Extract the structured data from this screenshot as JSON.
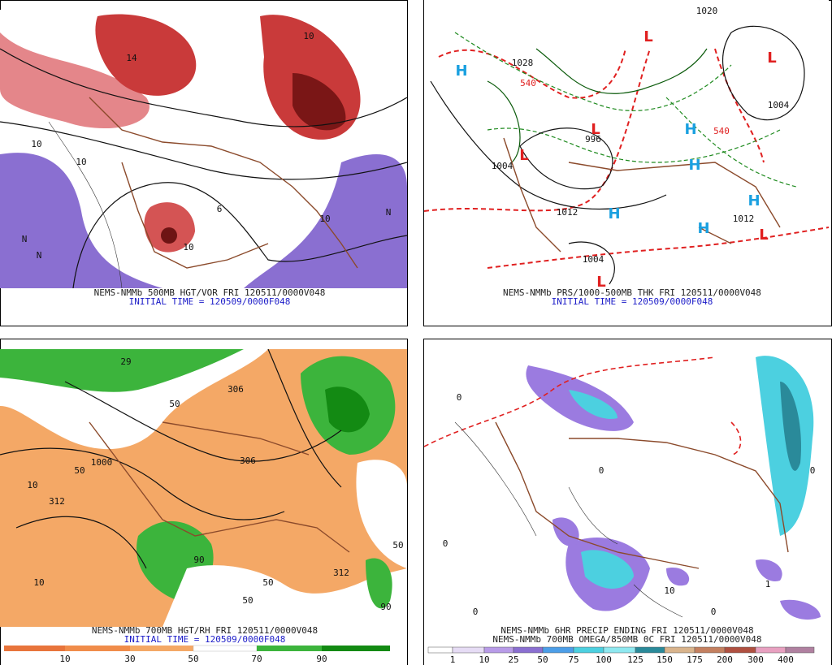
{
  "panels": [
    {
      "caption": "NEMS-NMMb 500MB HGT/VOR FRI 120511/0000V048",
      "initial": "INITIAL TIME = 120509/0000F048",
      "labels": [
        "10",
        "10",
        "10",
        "N",
        "N",
        "N",
        "10",
        "10",
        "6",
        "14"
      ]
    },
    {
      "caption": "NEMS-NMMb PRS/1000-500MB THK FRI 120511/0000V048",
      "initial": "INITIAL TIME = 120509/0000F048",
      "labels": [
        "H",
        "L",
        "L",
        "L",
        "L",
        "H",
        "H",
        "H",
        "H",
        "H",
        "L",
        "L",
        "1028",
        "540",
        "996",
        "1004",
        "1012",
        "1012",
        "1004",
        "1004",
        "1020",
        "540"
      ]
    },
    {
      "caption": "NEMS-NMMb 700MB HGT/RH FRI 120511/0000V048",
      "initial": "INITIAL TIME = 120509/0000F048",
      "labels": [
        "10",
        "50",
        "312",
        "1000",
        "10",
        "50",
        "50",
        "306",
        "90",
        "312",
        "50",
        "90",
        "50",
        "306",
        "29"
      ],
      "colorbar": [
        "10",
        "30",
        "50",
        "70",
        "90"
      ]
    },
    {
      "caption": "NEMS-NMMb 6HR PRECIP ENDING FRI 120511/0000V048",
      "initial": "NEMS-NMMb 700MB OMEGA/850MB 0C FRI 120511/0000V048",
      "labels": [
        "0",
        "0",
        "0",
        "0",
        "10",
        "1",
        "0",
        "0"
      ],
      "colorbar": [
        "1",
        "10",
        "25",
        "50",
        "75",
        "100",
        "125",
        "150",
        "175",
        "200",
        "300",
        "400"
      ]
    }
  ]
}
